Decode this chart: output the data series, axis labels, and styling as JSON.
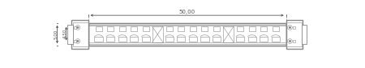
{
  "fig_width": 4.5,
  "fig_height": 0.85,
  "dpi": 100,
  "bg_color": "#ffffff",
  "line_color": "#888888",
  "lc_dark": "#555555",
  "label_50": "50,00",
  "label_450": "4,50",
  "label_500": "5,00",
  "n_cells": 16,
  "xlim": [
    0,
    110
  ],
  "ylim": [
    0,
    19
  ]
}
